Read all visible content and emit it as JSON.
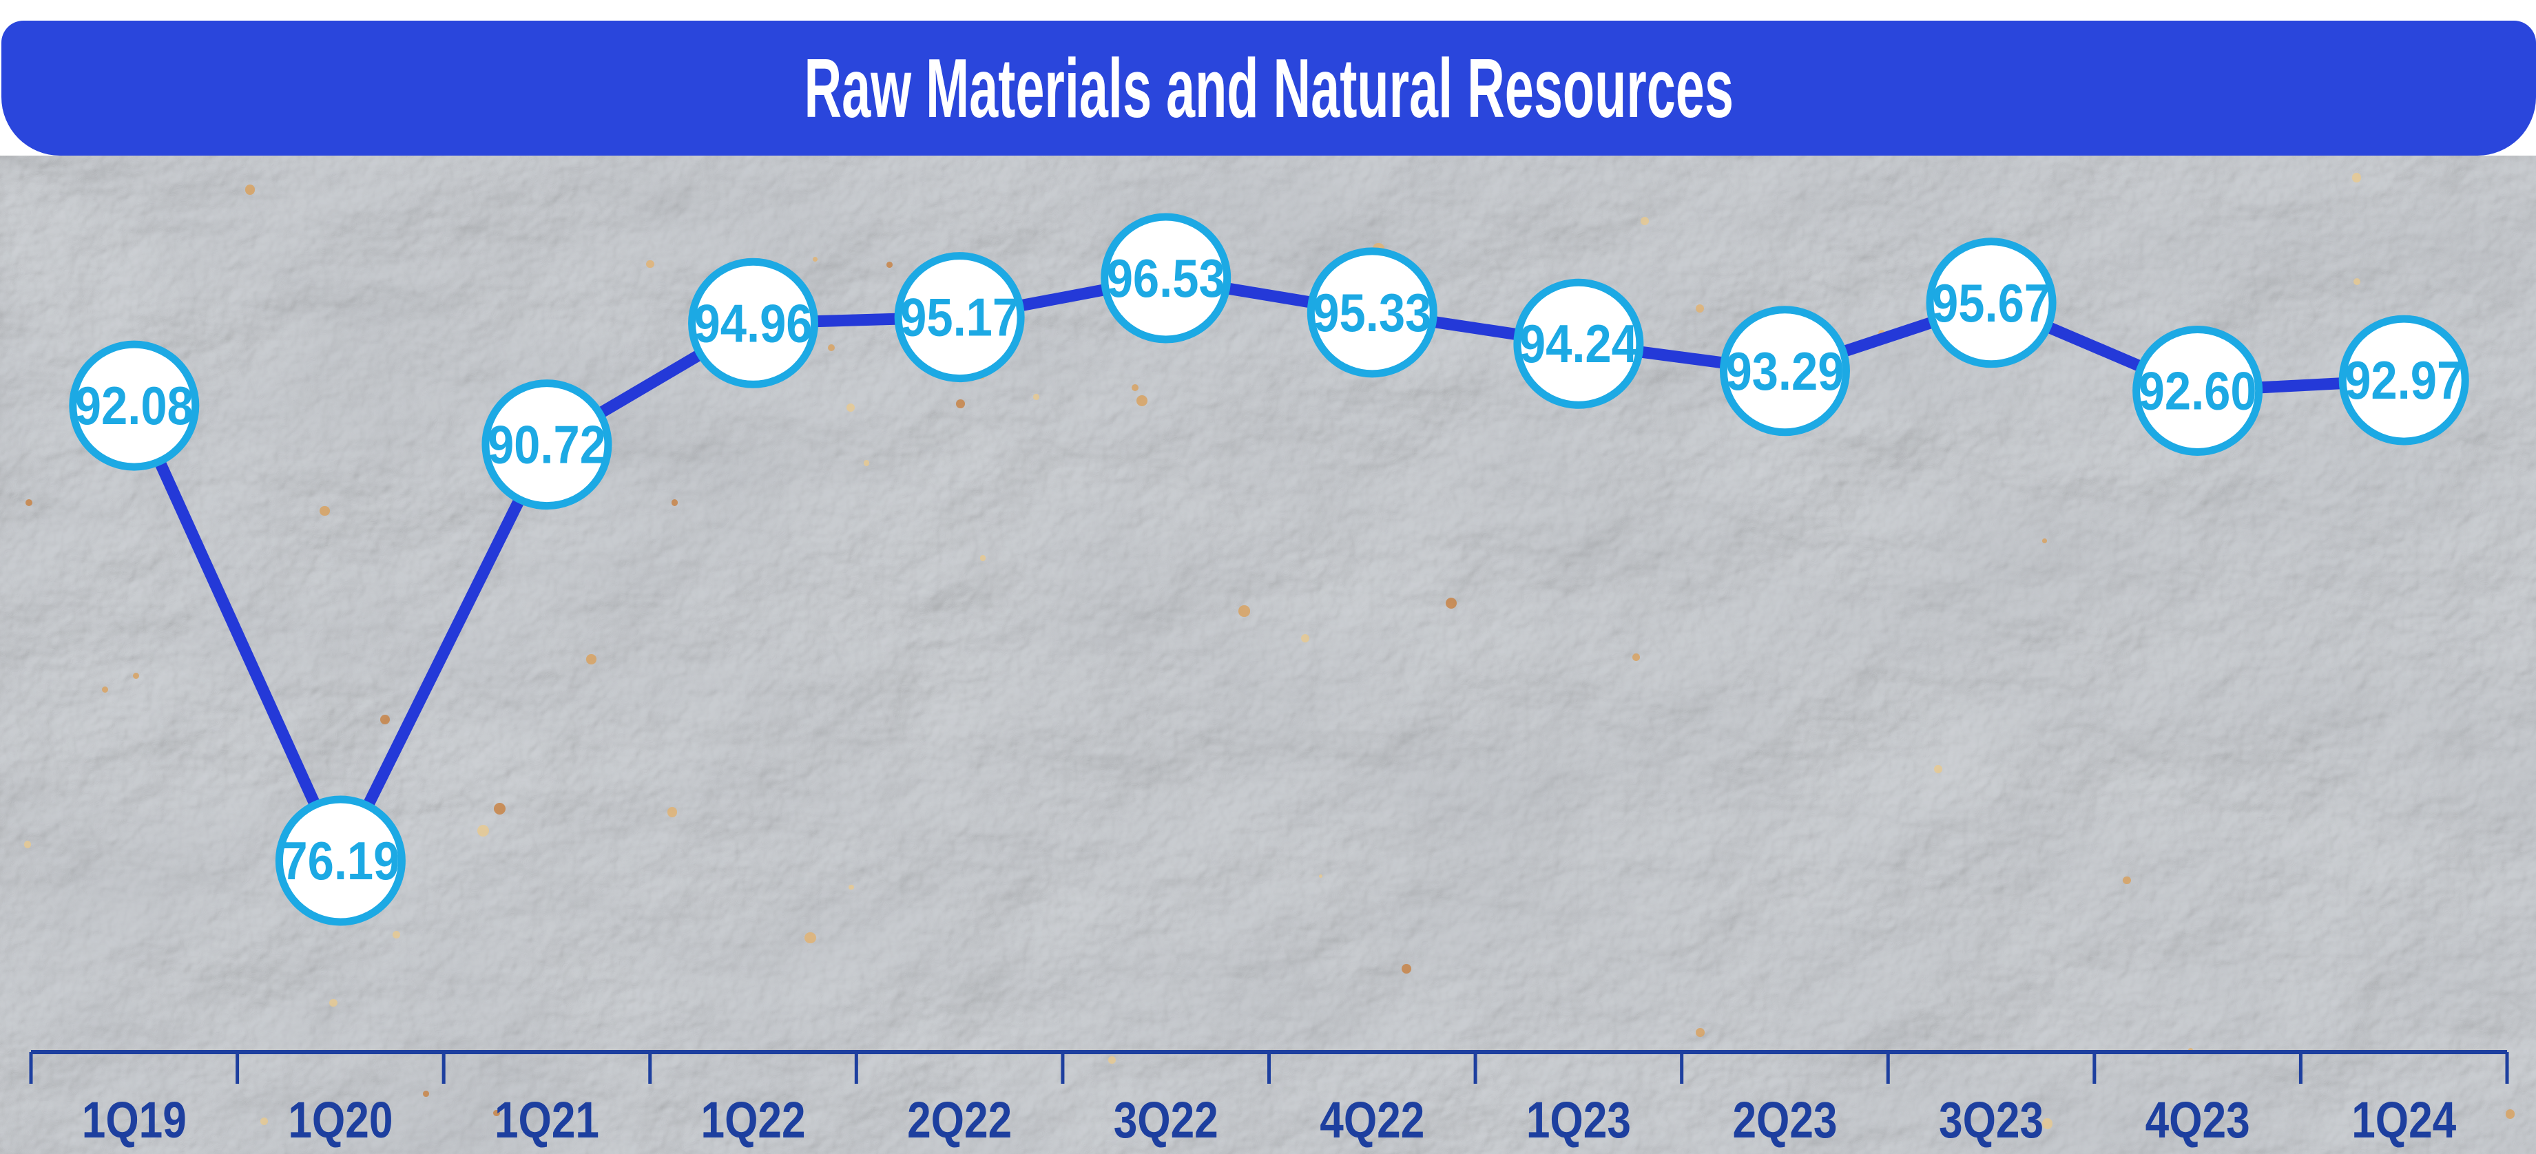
{
  "header": {
    "title": "Raw Materials and Natural Resources",
    "bg_color": "#2A46DC",
    "text_color": "#FFFFFF"
  },
  "chart_data": {
    "type": "line",
    "title": "Raw Materials and Natural Resources",
    "categories": [
      "1Q19",
      "1Q20",
      "1Q21",
      "1Q22",
      "2Q22",
      "3Q22",
      "4Q22",
      "1Q23",
      "2Q23",
      "3Q23",
      "4Q23",
      "1Q24"
    ],
    "values": [
      92.08,
      76.19,
      90.72,
      94.96,
      95.17,
      96.53,
      95.33,
      94.24,
      93.29,
      95.67,
      92.6,
      92.97
    ],
    "value_labels": [
      "92.08",
      "76.19",
      "90.72",
      "94.96",
      "95.17",
      "96.53",
      "95.33",
      "94.24",
      "93.29",
      "95.67",
      "92.60",
      "92.97"
    ],
    "xlabel": "",
    "ylabel": "",
    "ylim": [
      74,
      98
    ],
    "grid": false,
    "legend": false,
    "line_color": "#2439D8",
    "marker_fill": "#FFFFFF",
    "marker_border_color": "#1CA9E4",
    "value_text_color": "#1CA9E4",
    "axis_color": "#1D3F9F",
    "label_color": "#1D3F9F"
  }
}
